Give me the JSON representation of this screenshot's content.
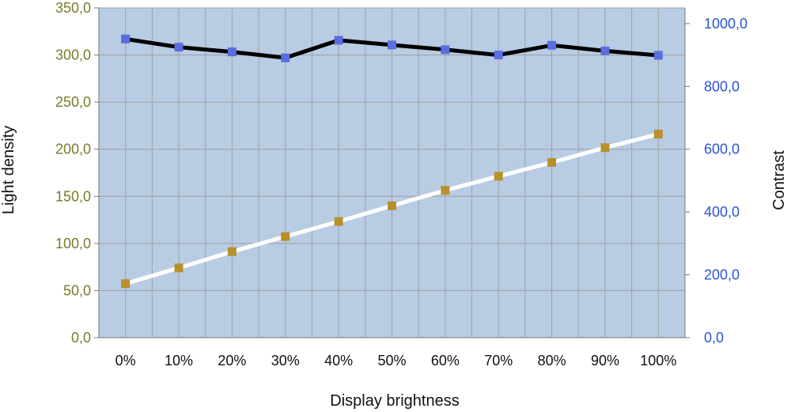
{
  "chart_data": {
    "type": "line",
    "xlabel": "Display brightness",
    "ylabel_left": "Light density",
    "ylabel_right": "Contrast",
    "categories": [
      "0%",
      "10%",
      "20%",
      "30%",
      "40%",
      "50%",
      "60%",
      "70%",
      "80%",
      "90%",
      "100%"
    ],
    "y_left": {
      "range": [
        0,
        350
      ],
      "ticks": [
        0,
        50,
        100,
        150,
        200,
        250,
        300,
        350
      ],
      "tick_labels": [
        "0,0",
        "50,0",
        "100,0",
        "150,0",
        "200,0",
        "250,0",
        "300,0",
        "350,0"
      ],
      "color": "#7a7a28"
    },
    "y_right": {
      "range": [
        0,
        1050
      ],
      "ticks": [
        0,
        200,
        400,
        600,
        800,
        1000
      ],
      "tick_labels": [
        "0,0",
        "200,0",
        "400,0",
        "600,0",
        "800,0",
        "1000,0"
      ],
      "color": "#2a55d6"
    },
    "grid": true,
    "series": [
      {
        "axis": "right",
        "line_color": "#000000",
        "marker_color": "#5a6ee0",
        "values": [
          951,
          925,
          910,
          891,
          947,
          932,
          917,
          900,
          931,
          913,
          899
        ]
      },
      {
        "axis": "right",
        "line_color": "#ffffff",
        "marker_color": "#b8902a",
        "values": [
          172,
          222,
          274,
          322,
          370,
          420,
          469,
          514,
          558,
          605,
          648
        ]
      }
    ],
    "plot_background": "#b8cce4",
    "grid_color": "#a0a0a0"
  }
}
